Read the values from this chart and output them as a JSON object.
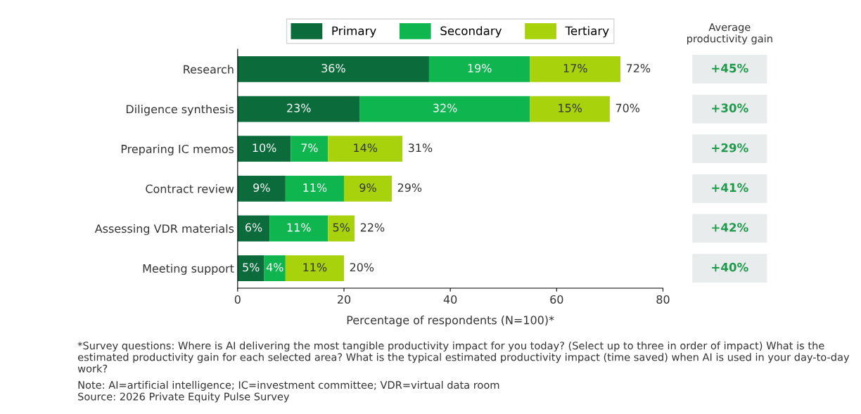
{
  "chart_data": [
    {
      "type": "bar",
      "orientation": "horizontal",
      "stacked": true,
      "categories": [
        "Research",
        "Diligence synthesis",
        "Preparing IC memos",
        "Contract review",
        "Assessing VDR materials",
        "Meeting support"
      ],
      "series": [
        {
          "name": "Primary",
          "color": "#0b6b3a",
          "values": [
            36,
            23,
            10,
            9,
            6,
            5
          ],
          "value_labels": [
            "36%",
            "23%",
            "10%",
            "9%",
            "6%",
            "5%"
          ]
        },
        {
          "name": "Secondary",
          "color": "#0fb650",
          "values": [
            19,
            32,
            7,
            11,
            11,
            4
          ],
          "value_labels": [
            "19%",
            "32%",
            "7%",
            "11%",
            "11%",
            "4%"
          ]
        },
        {
          "name": "Tertiary",
          "color": "#a8d20c",
          "values": [
            17,
            15,
            14,
            9,
            5,
            11
          ],
          "value_labels": [
            "17%",
            "15%",
            "14%",
            "9%",
            "5%",
            "11%"
          ]
        }
      ],
      "totals": [
        "72%",
        "70%",
        "31%",
        "29%",
        "22%",
        "20%"
      ],
      "xlim": [
        0,
        80
      ],
      "xticks": [
        0,
        20,
        40,
        60,
        80
      ],
      "xlabel": "Percentage of respondents (N=100)*",
      "legend": "top",
      "grid": false,
      "annotations": [
        "*Survey questions: Where is AI delivering the most tangible productivity impact for you today? (Select up to three in order of impact) What is the estimated productivity gain for each selected area? What is the typical estimated productivity impact (time saved) when AI is used in your day-to-day work?",
        "Note: AI=artificial intelligence; IC=investment committee; VDR=virtual data room",
        "Source: 2026 Private Equity Pulse Survey"
      ]
    },
    {
      "type": "other",
      "title": "Average productivity gain",
      "annotations": [
        "+45%",
        "+30%",
        "+29%",
        "+41%",
        "+42%",
        "+40%"
      ]
    }
  ]
}
